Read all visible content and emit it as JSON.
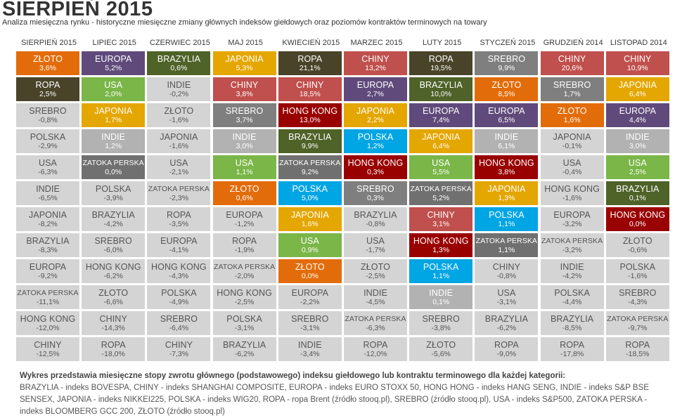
{
  "title": "SIERPIEŃ 2015",
  "subtitle": "Analiza miesięczna rynku - historyczne miesięczne zmiany głównych indeksów giełdowych oraz poziomów kontraktów terminowych na towary",
  "colors": {
    "ZŁOTO": "#e36c0a",
    "EUROPA": "#604a7b",
    "BRAZYLIA": "#4f6228",
    "JAPONIA": "#e4a600",
    "ROPA": "#494429",
    "CHINY": "#c0504d",
    "SREBRO": "#7f7f7f",
    "USA": "#7ab648",
    "INDIE": "#b2b2b2",
    "HONG KONG": "#990000",
    "POLSKA": "#00a5e3",
    "ZATOKA PERSKA": "#707070",
    "neutral": "#d4d4d4"
  },
  "chart_data": {
    "type": "table",
    "title": "SIERPIEŃ 2015",
    "months": [
      "SIERPIEŃ 2015",
      "LIPIEC 2015",
      "CZERWIEC 2015",
      "MAJ 2015",
      "KWIECIEŃ 2015",
      "MARZEC 2015",
      "LUTY 2015",
      "STYCZEŃ 2015",
      "GRUDZIEŃ 2014",
      "LISTOPAD 2014"
    ],
    "columns": [
      [
        [
          "ZŁOTO",
          "3,6%"
        ],
        [
          "ROPA",
          "2,5%"
        ],
        [
          "SREBRO",
          "-0,8%"
        ],
        [
          "POLSKA",
          "-2,9%"
        ],
        [
          "USA",
          "-6,3%"
        ],
        [
          "INDIE",
          "-6,5%"
        ],
        [
          "JAPONIA",
          "-8,2%"
        ],
        [
          "BRAZYLIA",
          "-8,3%"
        ],
        [
          "EUROPA",
          "-9,2%"
        ],
        [
          "ZATOKA PERSKA",
          "-11,1%"
        ],
        [
          "HONG KONG",
          "-12,0%"
        ],
        [
          "CHINY",
          "-12,5%"
        ]
      ],
      [
        [
          "EUROPA",
          "5,2%"
        ],
        [
          "USA",
          "2,0%"
        ],
        [
          "JAPONIA",
          "1,7%"
        ],
        [
          "INDIE",
          "1,2%"
        ],
        [
          "ZATOKA PERSKA",
          "0,0%"
        ],
        [
          "POLSKA",
          "-3,9%"
        ],
        [
          "BRAZYLIA",
          "-4,2%"
        ],
        [
          "SREBRO",
          "-6,0%"
        ],
        [
          "HONG KONG",
          "-6,2%"
        ],
        [
          "ZŁOTO",
          "-6,6%"
        ],
        [
          "CHINY",
          "-14,3%"
        ],
        [
          "ROPA",
          "-18,0%"
        ]
      ],
      [
        [
          "BRAZYLIA",
          "0,6%"
        ],
        [
          "INDIE",
          "-0,2%"
        ],
        [
          "ZŁOTO",
          "-1,6%"
        ],
        [
          "JAPONIA",
          "-1,6%"
        ],
        [
          "USA",
          "-2,1%"
        ],
        [
          "ZATOKA PERSKA",
          "-2,3%"
        ],
        [
          "ROPA",
          "-3,5%"
        ],
        [
          "EUROPA",
          "-4,1%"
        ],
        [
          "HONG KONG",
          "-4,3%"
        ],
        [
          "POLSKA",
          "-4,9%"
        ],
        [
          "SREBRO",
          "-6,4%"
        ],
        [
          "CHINY",
          "-7,3%"
        ]
      ],
      [
        [
          "JAPONIA",
          "5,3%"
        ],
        [
          "CHINY",
          "3,8%"
        ],
        [
          "SREBRO",
          "3,7%"
        ],
        [
          "INDIE",
          "3,0%"
        ],
        [
          "USA",
          "1,1%"
        ],
        [
          "ZŁOTO",
          "0,6%"
        ],
        [
          "EUROPA",
          "-1,2%"
        ],
        [
          "ROPA",
          "-1,9%"
        ],
        [
          "ZATOKA PERSKA",
          "-2,0%"
        ],
        [
          "HONG KONG",
          "-2,5%"
        ],
        [
          "POLSKA",
          "-3,1%"
        ],
        [
          "BRAZYLIA",
          "-6,2%"
        ]
      ],
      [
        [
          "ROPA",
          "21,1%"
        ],
        [
          "CHINY",
          "18,5%"
        ],
        [
          "HONG KONG",
          "13,0%"
        ],
        [
          "BRAZYLIA",
          "9,9%"
        ],
        [
          "ZATOKA PERSKA",
          "9,2%"
        ],
        [
          "POLSKA",
          "5,0%"
        ],
        [
          "JAPONIA",
          "1,6%"
        ],
        [
          "USA",
          "0,9%"
        ],
        [
          "ZŁOTO",
          "0,0%"
        ],
        [
          "EUROPA",
          "-2,2%"
        ],
        [
          "SREBRO",
          "-3,1%"
        ],
        [
          "INDIE",
          "-3,4%"
        ]
      ],
      [
        [
          "CHINY",
          "13,2%"
        ],
        [
          "EUROPA",
          "2,7%"
        ],
        [
          "JAPONIA",
          "2,2%"
        ],
        [
          "POLSKA",
          "1,2%"
        ],
        [
          "HONG KONG",
          "0,3%"
        ],
        [
          "SREBRO",
          "0,3%"
        ],
        [
          "BRAZYLIA",
          "-0,8%"
        ],
        [
          "USA",
          "-1,7%"
        ],
        [
          "ZŁOTO",
          "-2,5%"
        ],
        [
          "INDIE",
          "-4,5%"
        ],
        [
          "ZATOKA PERSKA",
          "-6,3%"
        ],
        [
          "ROPA",
          "-12,0%"
        ]
      ],
      [
        [
          "ROPA",
          "19,5%"
        ],
        [
          "BRAZYLIA",
          "10,0%"
        ],
        [
          "EUROPA",
          "7,4%"
        ],
        [
          "JAPONIA",
          "6,4%"
        ],
        [
          "USA",
          "5,5%"
        ],
        [
          "ZATOKA PERSKA",
          "5,2%"
        ],
        [
          "CHINY",
          "3,1%"
        ],
        [
          "HONG KONG",
          "1,3%"
        ],
        [
          "POLSKA",
          "1,1%"
        ],
        [
          "INDIE",
          "0,1%"
        ],
        [
          "SREBRO",
          "-3,8%"
        ],
        [
          "ZŁOTO",
          "-5,6%"
        ]
      ],
      [
        [
          "SREBRO",
          "9,9%"
        ],
        [
          "ZŁOTO",
          "8,5%"
        ],
        [
          "EUROPA",
          "6,5%"
        ],
        [
          "INDIE",
          "6,1%"
        ],
        [
          "HONG KONG",
          "3,8%"
        ],
        [
          "JAPONIA",
          "1,3%"
        ],
        [
          "POLSKA",
          "1,1%"
        ],
        [
          "ZATOKA PERSKA",
          "1,1%"
        ],
        [
          "CHINY",
          "-0,8%"
        ],
        [
          "USA",
          "-3,1%"
        ],
        [
          "BRAZYLIA",
          "-6,2%"
        ],
        [
          "ROPA",
          "-9,0%"
        ]
      ],
      [
        [
          "CHINY",
          "20,6%"
        ],
        [
          "SREBRO",
          "1,7%"
        ],
        [
          "ZŁOTO",
          "1,6%"
        ],
        [
          "JAPONIA",
          "-0,1%"
        ],
        [
          "USA",
          "-0,4%"
        ],
        [
          "HONG KONG",
          "-1,6%"
        ],
        [
          "EUROPA",
          "-3,2%"
        ],
        [
          "ZATOKA PERSKA",
          "-3,2%"
        ],
        [
          "INDIE",
          "-4,2%"
        ],
        [
          "POLSKA",
          "-4,4%"
        ],
        [
          "BRAZYLIA",
          "-8,5%"
        ],
        [
          "ROPA",
          "-17,8%"
        ]
      ],
      [
        [
          "CHINY",
          "10,9%"
        ],
        [
          "JAPONIA",
          "6,4%"
        ],
        [
          "EUROPA",
          "4,4%"
        ],
        [
          "INDIE",
          "3,0%"
        ],
        [
          "USA",
          "2,5%"
        ],
        [
          "BRAZYLIA",
          "0,1%"
        ],
        [
          "HONG KONG",
          "0,0%"
        ],
        [
          "ZŁOTO",
          "-0,6%"
        ],
        [
          "POLSKA",
          "-1,6%"
        ],
        [
          "SREBRO",
          "-4,3%"
        ],
        [
          "ZATOKA PERSKA",
          "-9,7%"
        ],
        [
          "ROPA",
          "-18,5%"
        ]
      ]
    ]
  },
  "note": {
    "heading": "Wykres przedstawia miesięczne stopy zwrotu głównego (podstawowego) indeksu giełdowego lub kontraktu terminowego dla każdej kategorii:",
    "body": "BRAZYLIA - indeks BOVESPA, CHINY - indeks SHANGHAI COMPOSITE, EUROPA - indeks EURO STOXX 50, HONG HONG - indeks HANG SENG, INDIE - indeks S&P BSE SENSEX, JAPONIA - indeks NIKKEI225, POLSKA - indeks WIG20, ROPA - ropa Brent (źródło stooq.pl), SREBRO (źródło stooq.pl), USA - indeks S&P500, ZATOKA PERSKA - indeks BLOOMBERG GCC 200, ZŁOTO (źródło stooq.pl)"
  }
}
